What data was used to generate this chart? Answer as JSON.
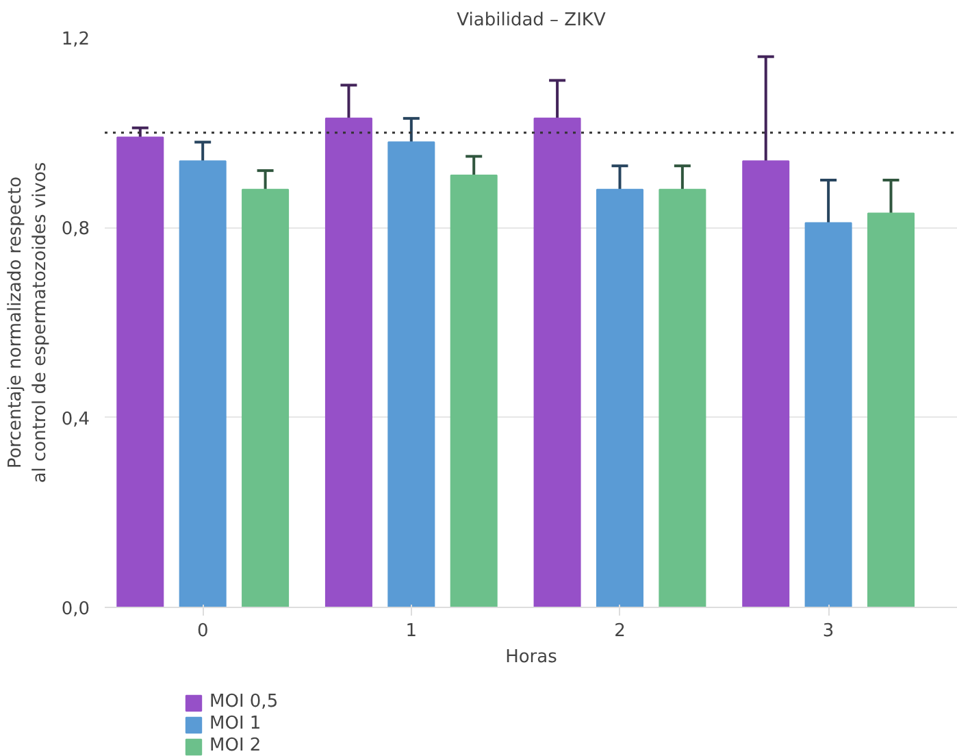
{
  "chart_data": {
    "type": "bar",
    "title": "Viabilidad – ZIKV",
    "xlabel": "Horas",
    "ylabel": "Porcentaje normalizado respecto\nal control de espermatozoides vivos",
    "categories": [
      "0",
      "1",
      "2",
      "3"
    ],
    "series": [
      {
        "name": "MOI 0,5",
        "color": "#9650c8",
        "values": [
          0.99,
          1.03,
          1.03,
          0.94
        ],
        "errors": [
          [
            0.99,
            1.01
          ],
          [
            1.03,
            1.1
          ],
          [
            1.03,
            1.11
          ],
          [
            0.94,
            1.16
          ]
        ]
      },
      {
        "name": "MOI 1",
        "color": "#5a9bd5",
        "values": [
          0.94,
          0.98,
          0.88,
          0.81
        ],
        "errors": [
          [
            0.94,
            0.98
          ],
          [
            0.98,
            1.03
          ],
          [
            0.88,
            0.93
          ],
          [
            0.81,
            0.9
          ]
        ]
      },
      {
        "name": "MOI 2",
        "color": "#6cc08b",
        "values": [
          0.88,
          0.91,
          0.88,
          0.83
        ],
        "errors": [
          [
            0.88,
            0.92
          ],
          [
            0.91,
            0.95
          ],
          [
            0.88,
            0.93
          ],
          [
            0.83,
            0.9
          ]
        ]
      }
    ],
    "ylim": [
      0,
      1.2
    ],
    "yticks": [
      {
        "value": 0,
        "label": "0,0"
      },
      {
        "value": 0.4,
        "label": "0,4"
      },
      {
        "value": 0.8,
        "label": "0,8"
      },
      {
        "value": 1.2,
        "label": "1,2"
      }
    ],
    "ref_lines": [
      {
        "axis": "y",
        "value": 1,
        "color": "#333333",
        "line_style": "dotted"
      }
    ],
    "grid": "y",
    "legend": "bottom left"
  }
}
